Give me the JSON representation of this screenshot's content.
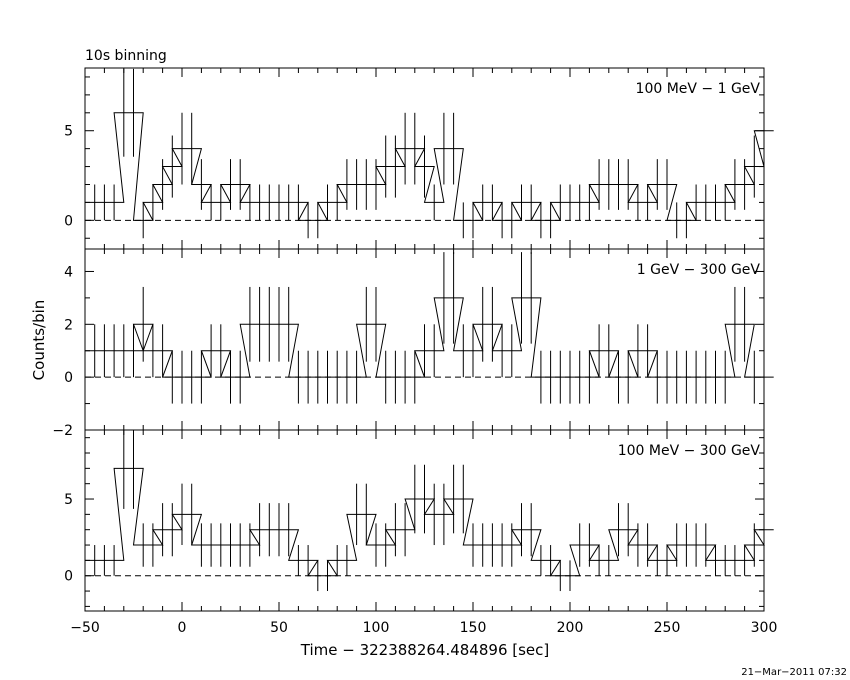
{
  "header": {
    "binning_label": "10s binning"
  },
  "axes": {
    "xlabel": "Time − 322388264.484896 [sec]",
    "ylabel": "Counts/bin"
  },
  "footer": {
    "timestamp": "21−Mar−2011 07:32"
  },
  "chart_data": {
    "type": "step",
    "bin_width": 10,
    "xlim": [
      -50,
      300
    ],
    "x_ticks": [
      -50,
      0,
      50,
      100,
      150,
      200,
      250,
      300
    ],
    "grid": false,
    "zero_line": "dashed",
    "panels": [
      {
        "label": "100 MeV − 1 GeV",
        "ylim": [
          -1.6,
          8.5
        ],
        "y_ticks": [
          0,
          5
        ],
        "bin_starts": [
          -50,
          -45,
          -40,
          -35,
          -30,
          -25,
          -20,
          -15,
          -10,
          -5,
          0,
          5,
          10,
          15,
          20,
          25,
          30,
          35,
          40,
          45,
          50,
          55,
          60,
          65,
          70,
          75,
          80,
          85,
          90,
          95,
          100,
          105,
          110,
          115,
          120,
          125,
          130,
          135,
          140,
          145,
          150,
          155,
          160,
          165,
          170,
          175,
          180,
          185,
          190,
          195,
          200,
          205,
          210,
          215,
          220,
          225,
          230,
          235,
          240,
          245,
          250,
          255,
          260,
          265,
          270,
          275,
          280,
          285,
          290,
          295
        ],
        "counts": [
          1,
          1,
          1,
          6,
          6,
          0,
          1,
          2,
          3,
          4,
          4,
          2,
          1,
          1,
          2,
          2,
          1,
          1,
          1,
          1,
          1,
          1,
          0,
          0,
          1,
          1,
          2,
          2,
          2,
          2,
          3,
          3,
          4,
          4,
          3,
          1,
          4,
          4,
          0,
          0,
          1,
          1,
          0,
          0,
          1,
          1,
          0,
          0,
          1,
          1,
          1,
          1,
          2,
          2,
          2,
          2,
          1,
          1,
          2,
          2,
          0,
          0,
          1,
          1,
          1,
          1,
          2,
          2,
          3,
          5
        ]
      },
      {
        "label": "1 GeV − 300 GeV",
        "ylim": [
          -2,
          4.85
        ],
        "y_ticks": [
          -2,
          0,
          2,
          4
        ],
        "bin_starts": [
          -50,
          -45,
          -40,
          -35,
          -30,
          -25,
          -20,
          -15,
          -10,
          -5,
          0,
          5,
          10,
          15,
          20,
          25,
          30,
          35,
          40,
          45,
          50,
          55,
          60,
          65,
          70,
          75,
          80,
          85,
          90,
          95,
          100,
          105,
          110,
          115,
          120,
          125,
          130,
          135,
          140,
          145,
          150,
          155,
          160,
          165,
          170,
          175,
          180,
          185,
          190,
          195,
          200,
          205,
          210,
          215,
          220,
          225,
          230,
          235,
          240,
          245,
          250,
          255,
          260,
          265,
          270,
          275,
          280,
          285,
          290,
          295
        ],
        "counts": [
          1,
          1,
          1,
          1,
          1,
          2,
          1,
          1,
          0,
          0,
          0,
          0,
          1,
          1,
          0,
          0,
          2,
          2,
          2,
          2,
          2,
          0,
          0,
          0,
          0,
          0,
          0,
          0,
          2,
          2,
          0,
          0,
          0,
          0,
          1,
          1,
          3,
          3,
          1,
          1,
          2,
          2,
          1,
          1,
          3,
          3,
          0,
          0,
          0,
          0,
          0,
          0,
          1,
          1,
          0,
          0,
          1,
          1,
          0,
          0,
          0,
          0,
          0,
          0,
          0,
          0,
          2,
          2,
          0,
          0
        ]
      },
      {
        "label": "100 MeV − 300 GeV",
        "ylim": [
          -2.3,
          9.5
        ],
        "y_ticks": [
          0,
          5
        ],
        "bin_starts": [
          -50,
          -45,
          -40,
          -35,
          -30,
          -25,
          -20,
          -15,
          -10,
          -5,
          0,
          5,
          10,
          15,
          20,
          25,
          30,
          35,
          40,
          45,
          50,
          55,
          60,
          65,
          70,
          75,
          80,
          85,
          90,
          95,
          100,
          105,
          110,
          115,
          120,
          125,
          130,
          135,
          140,
          145,
          150,
          155,
          160,
          165,
          170,
          175,
          180,
          185,
          190,
          195,
          200,
          205,
          210,
          215,
          220,
          225,
          230,
          235,
          240,
          245,
          250,
          255,
          260,
          265,
          270,
          275,
          280,
          285,
          290,
          295
        ],
        "counts": [
          1,
          1,
          1,
          7,
          7,
          2,
          2,
          3,
          3,
          4,
          4,
          2,
          2,
          2,
          2,
          2,
          2,
          3,
          3,
          3,
          3,
          1,
          1,
          0,
          0,
          1,
          1,
          4,
          4,
          2,
          2,
          3,
          3,
          5,
          5,
          4,
          4,
          5,
          5,
          2,
          2,
          2,
          2,
          2,
          3,
          3,
          1,
          1,
          0,
          0,
          2,
          2,
          1,
          1,
          3,
          3,
          2,
          2,
          1,
          1,
          2,
          2,
          2,
          2,
          1,
          1,
          1,
          1,
          2,
          3
        ]
      }
    ]
  }
}
